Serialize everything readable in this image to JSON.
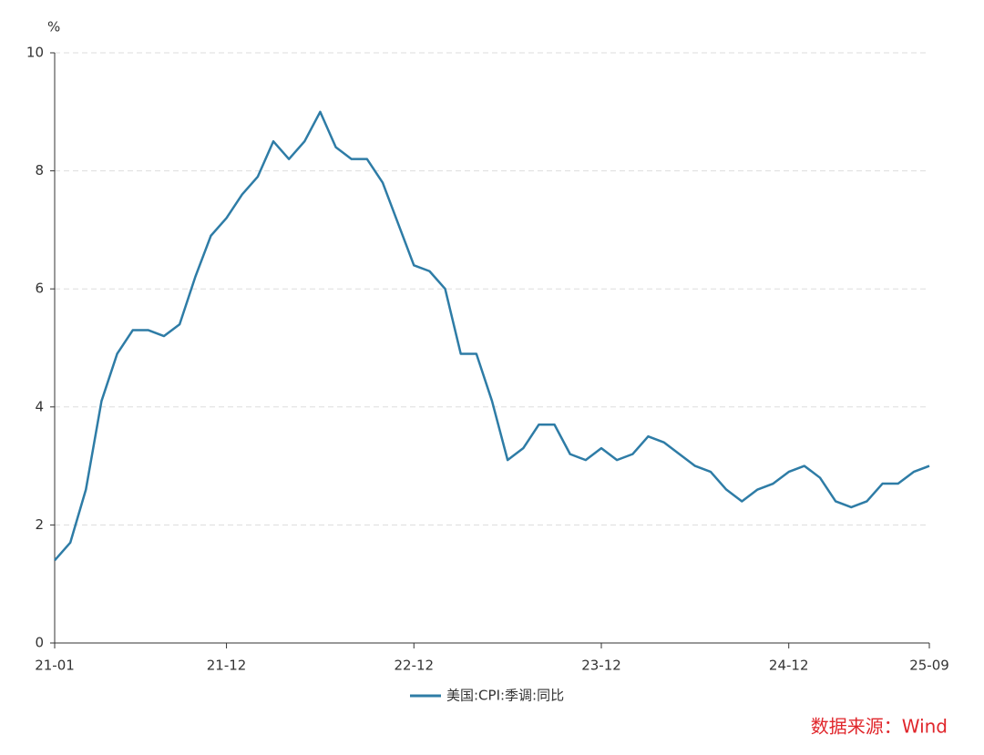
{
  "chart_data": {
    "type": "line",
    "y_label": "%",
    "categories": [
      "21-01",
      null,
      null,
      null,
      null,
      null,
      null,
      null,
      null,
      null,
      null,
      "21-12",
      null,
      null,
      null,
      null,
      null,
      null,
      null,
      null,
      null,
      null,
      null,
      "22-12",
      null,
      null,
      null,
      null,
      null,
      null,
      null,
      null,
      null,
      null,
      null,
      "23-12",
      null,
      null,
      null,
      null,
      null,
      null,
      null,
      null,
      null,
      null,
      null,
      "24-12",
      null,
      null,
      null,
      null,
      null,
      null,
      null,
      null,
      "25-09"
    ],
    "series": [
      {
        "name": "美国:CPI:季调:同比",
        "color": "#2e7ca6",
        "values": [
          1.4,
          1.7,
          2.6,
          4.1,
          4.9,
          5.3,
          5.3,
          5.2,
          5.4,
          6.2,
          6.9,
          7.2,
          7.6,
          7.9,
          8.5,
          8.2,
          8.5,
          9.0,
          8.4,
          8.2,
          8.2,
          7.8,
          7.1,
          6.4,
          6.3,
          6.0,
          4.9,
          4.9,
          4.1,
          3.1,
          3.3,
          3.7,
          3.7,
          3.2,
          3.1,
          3.3,
          3.1,
          3.2,
          3.5,
          3.4,
          3.2,
          3.0,
          2.9,
          2.6,
          2.4,
          2.6,
          2.7,
          2.9,
          3.0,
          2.8,
          2.4,
          2.3,
          2.4,
          2.7,
          2.7,
          2.9,
          3.0
        ]
      }
    ],
    "ylim": [
      0,
      10
    ],
    "yticks": [
      0,
      2,
      4,
      6,
      8,
      10
    ],
    "grid": true,
    "source": "数据来源：Wind"
  }
}
